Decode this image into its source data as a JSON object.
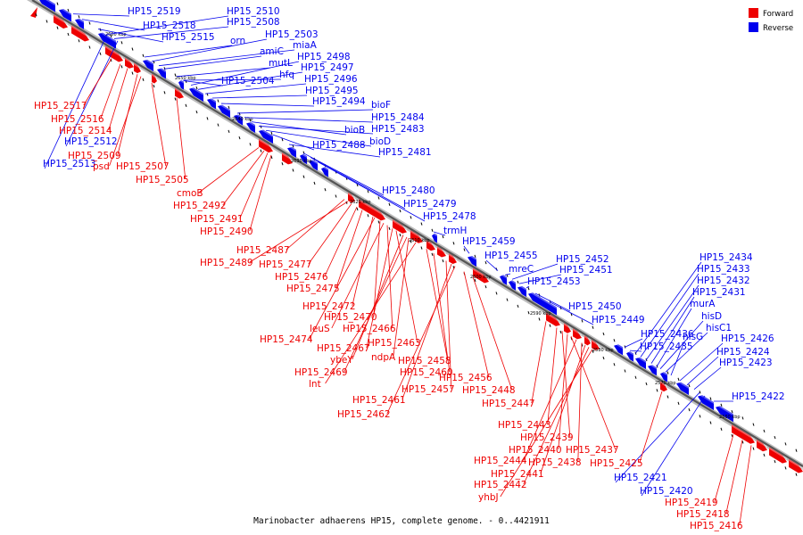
{
  "caption": "Marinobacter adhaerens HP15, complete genome. - 0..4421911",
  "legend": [
    {
      "label": "Forward",
      "color": "#ee0000"
    },
    {
      "label": "Reverse",
      "color": "#0000ee"
    }
  ],
  "ticks": [
    "2560 kbp",
    "2570 kbp",
    "2580 kbp",
    "2590 kbp",
    "2600 kbp",
    "2610 kbp",
    "2620 kbp",
    "2630 kbp",
    "2640 kbp",
    "2650 kbp",
    "2660 kbp"
  ],
  "reverse_labels": [
    "HP15_2519",
    "HP15_2518",
    "HP15_2515",
    "HP15_2510",
    "HP15_2508",
    "orn",
    "HP15_2503",
    "miaA",
    "amiC",
    "mutL",
    "hfq",
    "HP15_2504",
    "HP15_2498",
    "HP15_2497",
    "HP15_2496",
    "HP15_2495",
    "HP15_2494",
    "HP15_2513",
    "HP15_2512",
    "bioF",
    "HP15_2484",
    "bioB",
    "HP15_2483",
    "bioD",
    "HP15_2488",
    "HP15_2481",
    "HP15_2480",
    "HP15_2479",
    "HP15_2478",
    "trmH",
    "HP15_2459",
    "HP15_2455",
    "mreC",
    "HP15_2452",
    "HP15_2451",
    "HP15_2453",
    "HP15_2450",
    "HP15_2449",
    "HP15_2436",
    "HP15_2435",
    "HP15_2434",
    "HP15_2433",
    "HP15_2432",
    "HP15_2431",
    "murA",
    "hisD",
    "hisC1",
    "hisG",
    "HP15_2426",
    "HP15_2424",
    "HP15_2423",
    "HP15_2422",
    "HP15_2421",
    "HP15_2420"
  ],
  "forward_labels": [
    "HP15_2517",
    "HP15_2516",
    "HP15_2514",
    "HP15_2509",
    "psd",
    "HP15_2507",
    "HP15_2505",
    "cmoB",
    "HP15_2492",
    "HP15_2491",
    "HP15_2490",
    "HP15_2487",
    "HP15_2489",
    "HP15_2477",
    "HP15_2476",
    "HP15_2475",
    "HP15_2472",
    "HP15_2470",
    "leuS",
    "HP15_2466",
    "HP15_2474",
    "HP15_2467",
    "HP15_2463",
    "ybeY",
    "ndpA",
    "HP15_2469",
    "HP15_2458",
    "lnt",
    "HP15_2460",
    "HP15_2456",
    "HP15_2457",
    "HP15_2448",
    "HP15_2461",
    "HP15_2447",
    "HP15_2462",
    "HP15_2443",
    "HP15_2439",
    "HP15_2440",
    "HP15_2437",
    "HP15_2444",
    "HP15_2438",
    "HP15_2425",
    "HP15_2441",
    "HP15_2442",
    "yhbJ",
    "HP15_2419",
    "HP15_2418",
    "HP15_2416"
  ]
}
